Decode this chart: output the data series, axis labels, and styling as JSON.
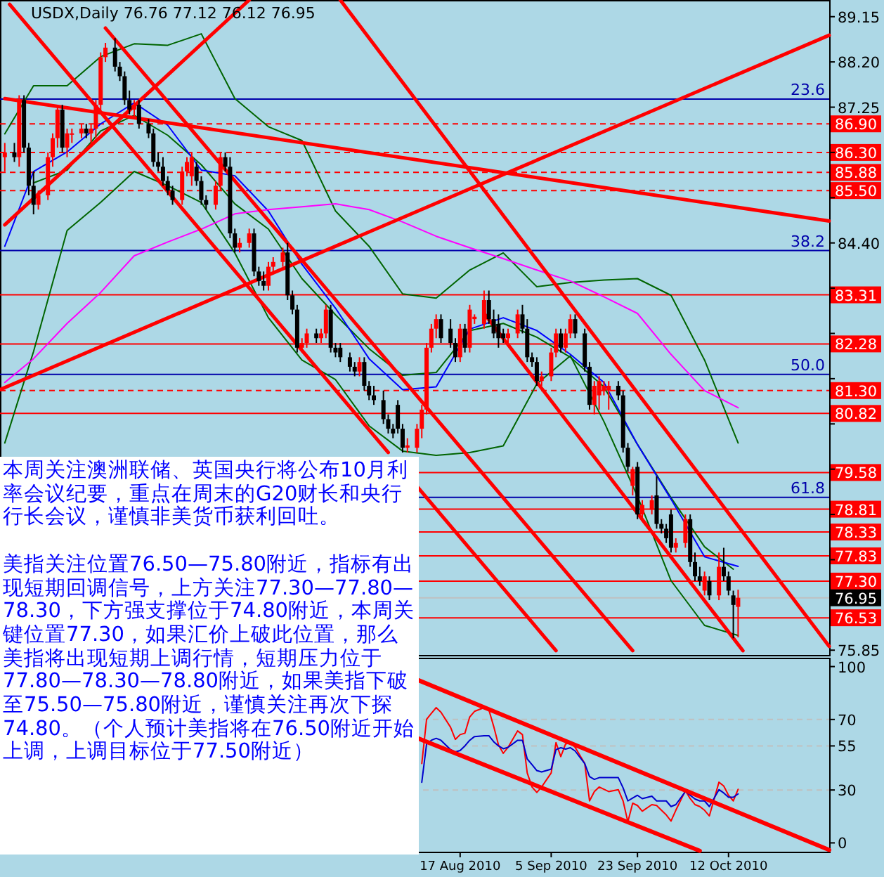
{
  "chart_data": [
    {
      "type": "candlestick",
      "title": "USDX,Daily  76.76 77.12 76.12 76.95",
      "x": [
        "2010-05-14",
        "2010-05-16",
        "2010-05-17",
        "2010-05-18",
        "2010-05-19",
        "2010-05-20",
        "2010-05-21",
        "2010-05-23",
        "2010-05-24",
        "2010-05-25",
        "2010-05-26",
        "2010-05-27",
        "2010-05-28",
        "2010-05-30",
        "2010-05-31",
        "2010-06-01",
        "2010-06-02",
        "2010-06-03",
        "2010-06-04",
        "2010-06-06",
        "2010-06-07",
        "2010-06-08",
        "2010-06-09",
        "2010-06-10",
        "2010-06-11",
        "2010-06-13",
        "2010-06-14",
        "2010-06-15",
        "2010-06-16",
        "2010-06-17",
        "2010-06-18",
        "2010-06-20",
        "2010-06-21",
        "2010-06-22",
        "2010-06-23",
        "2010-06-24",
        "2010-06-25",
        "2010-06-27",
        "2010-06-28",
        "2010-06-29",
        "2010-06-30",
        "2010-07-01",
        "2010-07-02",
        "2010-07-04",
        "2010-07-05",
        "2010-07-06",
        "2010-07-07",
        "2010-07-08",
        "2010-07-09",
        "2010-07-11",
        "2010-07-12",
        "2010-07-13",
        "2010-07-14",
        "2010-07-15",
        "2010-07-16",
        "2010-07-18",
        "2010-07-19",
        "2010-07-20",
        "2010-07-21",
        "2010-07-22",
        "2010-07-23",
        "2010-07-25",
        "2010-07-26",
        "2010-07-27",
        "2010-07-28",
        "2010-07-29",
        "2010-07-30",
        "2010-08-01",
        "2010-08-02",
        "2010-08-03",
        "2010-08-04",
        "2010-08-05",
        "2010-08-06",
        "2010-08-08",
        "2010-08-09",
        "2010-08-10",
        "2010-08-11",
        "2010-08-12",
        "2010-08-13",
        "2010-08-15",
        "2010-08-16",
        "2010-08-17",
        "2010-08-18",
        "2010-08-19",
        "2010-08-20",
        "2010-08-22",
        "2010-08-23",
        "2010-08-24",
        "2010-08-25",
        "2010-08-26",
        "2010-08-27",
        "2010-08-29",
        "2010-08-30",
        "2010-08-31",
        "2010-09-01",
        "2010-09-02",
        "2010-09-03",
        "2010-09-05",
        "2010-09-06",
        "2010-09-07",
        "2010-09-08",
        "2010-09-09",
        "2010-09-10",
        "2010-09-12",
        "2010-09-13",
        "2010-09-14",
        "2010-09-15",
        "2010-09-16",
        "2010-09-17",
        "2010-09-19",
        "2010-09-20",
        "2010-09-21",
        "2010-09-22",
        "2010-09-23",
        "2010-09-24",
        "2010-09-26",
        "2010-09-27",
        "2010-09-28",
        "2010-09-29",
        "2010-09-30",
        "2010-10-01",
        "2010-10-03",
        "2010-10-04",
        "2010-10-05",
        "2010-10-06",
        "2010-10-07",
        "2010-10-08",
        "2010-10-10",
        "2010-10-11",
        "2010-10-12",
        "2010-10-13",
        "2010-10-14"
      ],
      "ohlc": [
        [
          86.2,
          86.5,
          85.9,
          86.3
        ],
        [
          86.3,
          86.5,
          86.1,
          86.2
        ],
        [
          86.2,
          87.5,
          86.0,
          87.4
        ],
        [
          87.4,
          87.5,
          86.3,
          86.4
        ],
        [
          86.4,
          86.5,
          85.4,
          85.6
        ],
        [
          85.6,
          85.9,
          85.0,
          85.2
        ],
        [
          85.2,
          85.5,
          85.1,
          85.4
        ],
        [
          85.4,
          86.3,
          85.3,
          86.2
        ],
        [
          86.2,
          86.7,
          86.0,
          86.6
        ],
        [
          86.6,
          87.3,
          86.4,
          87.2
        ],
        [
          87.2,
          87.3,
          86.3,
          86.4
        ],
        [
          86.4,
          86.8,
          86.2,
          86.7
        ],
        [
          86.7,
          86.8,
          86.5,
          86.7
        ],
        [
          86.7,
          86.9,
          86.6,
          86.8
        ],
        [
          86.8,
          86.9,
          86.6,
          86.7
        ],
        [
          86.7,
          86.9,
          86.5,
          86.8
        ],
        [
          86.8,
          87.4,
          86.6,
          87.3
        ],
        [
          87.3,
          88.4,
          87.1,
          88.3
        ],
        [
          88.3,
          88.6,
          88.2,
          88.5
        ],
        [
          88.5,
          88.7,
          88.0,
          88.1
        ],
        [
          88.1,
          88.2,
          87.8,
          87.9
        ],
        [
          87.9,
          88.0,
          87.3,
          87.4
        ],
        [
          87.4,
          87.6,
          87.1,
          87.2
        ],
        [
          87.2,
          87.4,
          87.0,
          87.3
        ],
        [
          87.3,
          87.4,
          86.8,
          86.9
        ],
        [
          86.9,
          87.0,
          86.6,
          86.7
        ],
        [
          86.7,
          86.8,
          86.0,
          86.1
        ],
        [
          86.1,
          86.3,
          85.9,
          86.0
        ],
        [
          86.0,
          86.2,
          85.6,
          85.7
        ],
        [
          85.7,
          85.8,
          85.4,
          85.5
        ],
        [
          85.5,
          85.6,
          85.2,
          85.3
        ],
        [
          85.3,
          86.0,
          85.2,
          85.9
        ],
        [
          85.9,
          86.2,
          85.8,
          86.1
        ],
        [
          85.8,
          86.3,
          85.6,
          86.2
        ],
        [
          86.0,
          86.1,
          85.6,
          85.7
        ],
        [
          85.7,
          85.8,
          85.2,
          85.3
        ],
        [
          85.3,
          85.4,
          85.1,
          85.2
        ],
        [
          85.2,
          85.7,
          85.1,
          85.6
        ],
        [
          85.6,
          86.3,
          85.5,
          86.2
        ],
        [
          86.2,
          86.3,
          85.9,
          86.0
        ],
        [
          86.0,
          86.2,
          84.5,
          84.6
        ],
        [
          84.6,
          84.7,
          84.2,
          84.3
        ],
        [
          84.3,
          84.5,
          84.2,
          84.4
        ],
        [
          84.4,
          84.7,
          84.3,
          84.6
        ],
        [
          84.6,
          84.7,
          83.7,
          83.8
        ],
        [
          83.8,
          83.9,
          83.5,
          83.6
        ],
        [
          83.6,
          83.8,
          83.4,
          83.5
        ],
        [
          83.5,
          84.0,
          83.4,
          83.9
        ],
        [
          83.9,
          84.1,
          83.8,
          84.0
        ],
        [
          84.0,
          84.3,
          83.9,
          84.2
        ],
        [
          84.2,
          84.4,
          83.2,
          83.3
        ],
        [
          83.3,
          83.4,
          82.9,
          83.0
        ],
        [
          83.0,
          83.1,
          82.1,
          82.2
        ],
        [
          82.2,
          82.4,
          82.1,
          82.3
        ],
        [
          82.3,
          82.6,
          82.2,
          82.5
        ],
        [
          82.5,
          82.6,
          82.3,
          82.4
        ],
        [
          82.4,
          82.6,
          82.3,
          82.5
        ],
        [
          82.5,
          83.1,
          82.4,
          83.0
        ],
        [
          83.0,
          83.1,
          82.1,
          82.2
        ],
        [
          82.2,
          82.3,
          82.0,
          82.1
        ],
        [
          82.2,
          82.3,
          81.9,
          82.0
        ],
        [
          82.0,
          82.1,
          81.7,
          81.8
        ],
        [
          81.8,
          81.9,
          81.6,
          81.7
        ],
        [
          81.7,
          82.0,
          81.6,
          81.9
        ],
        [
          81.9,
          82.0,
          81.3,
          81.4
        ],
        [
          81.4,
          81.5,
          81.1,
          81.2
        ],
        [
          81.2,
          81.4,
          81.0,
          81.1
        ],
        [
          81.1,
          81.3,
          80.6,
          80.7
        ],
        [
          80.7,
          80.8,
          80.4,
          80.5
        ],
        [
          80.5,
          80.6,
          80.3,
          80.4
        ],
        [
          81.0,
          81.1,
          80.4,
          80.5
        ],
        [
          80.5,
          80.6,
          80.0,
          80.1
        ],
        [
          80.1,
          80.3,
          80.0,
          80.15
        ],
        [
          80.1,
          80.6,
          80.0,
          80.5
        ],
        [
          80.5,
          81.0,
          80.3,
          80.9
        ],
        [
          80.9,
          82.3,
          80.8,
          82.2
        ],
        [
          82.2,
          82.7,
          82.1,
          82.6
        ],
        [
          82.6,
          82.9,
          82.4,
          82.8
        ],
        [
          82.8,
          82.9,
          82.3,
          82.4
        ],
        [
          82.6,
          82.8,
          82.2,
          82.3
        ],
        [
          82.3,
          82.4,
          81.9,
          82.0
        ],
        [
          82.0,
          82.7,
          81.9,
          82.6
        ],
        [
          82.6,
          82.7,
          82.1,
          82.2
        ],
        [
          82.2,
          83.1,
          82.1,
          83.0
        ],
        [
          82.8,
          82.9,
          82.7,
          82.85
        ],
        [
          82.7,
          83.4,
          82.6,
          83.2
        ],
        [
          83.2,
          83.4,
          82.7,
          82.8
        ],
        [
          82.8,
          83.0,
          82.4,
          82.5
        ],
        [
          82.7,
          82.9,
          82.2,
          82.4
        ],
        [
          82.5,
          82.6,
          82.3,
          82.4
        ],
        [
          82.4,
          82.6,
          82.3,
          82.5
        ],
        [
          82.5,
          83.0,
          82.4,
          82.9
        ],
        [
          82.9,
          83.1,
          82.5,
          82.6
        ],
        [
          82.6,
          82.8,
          81.9,
          82.0
        ],
        [
          82.0,
          82.1,
          81.8,
          81.9
        ],
        [
          81.9,
          82.0,
          81.4,
          81.5
        ],
        [
          81.5,
          81.7,
          81.4,
          81.6
        ],
        [
          81.6,
          82.2,
          81.5,
          82.1
        ],
        [
          82.1,
          82.6,
          82.0,
          82.5
        ],
        [
          82.5,
          82.6,
          82.1,
          82.2
        ],
        [
          82.2,
          82.6,
          82.1,
          82.5
        ],
        [
          82.5,
          82.9,
          82.4,
          82.8
        ],
        [
          82.8,
          82.9,
          82.4,
          82.5
        ],
        [
          82.5,
          82.6,
          81.7,
          81.8
        ],
        [
          81.8,
          81.9,
          80.9,
          81.0
        ],
        [
          81.0,
          81.5,
          80.8,
          81.4
        ],
        [
          81.2,
          81.6,
          80.9,
          81.5
        ],
        [
          81.3,
          81.5,
          81.2,
          81.4
        ],
        [
          81.3,
          81.5,
          80.9,
          81.4
        ],
        [
          81.4,
          81.5,
          81.1,
          81.2
        ],
        [
          81.2,
          81.3,
          80.0,
          80.1
        ],
        [
          80.1,
          80.2,
          79.6,
          79.7
        ],
        [
          79.3,
          79.7,
          79.1,
          79.65
        ],
        [
          79.7,
          79.8,
          78.6,
          78.7
        ],
        [
          78.7,
          79.0,
          78.6,
          78.9
        ],
        [
          78.8,
          79.1,
          78.7,
          79.0
        ],
        [
          79.1,
          79.5,
          78.4,
          78.5
        ],
        [
          78.5,
          78.6,
          78.3,
          78.4
        ],
        [
          78.4,
          78.5,
          78.1,
          78.2
        ],
        [
          78.7,
          78.8,
          77.9,
          78.0
        ],
        [
          78.0,
          78.2,
          77.9,
          78.1
        ],
        [
          78.1,
          78.7,
          78.0,
          78.6
        ],
        [
          78.6,
          78.7,
          77.6,
          77.7
        ],
        [
          77.7,
          77.9,
          77.3,
          77.4
        ],
        [
          77.4,
          77.6,
          77.2,
          77.3
        ],
        [
          77.1,
          77.5,
          77.0,
          77.4
        ],
        [
          77.3,
          77.4,
          76.9,
          77.0
        ],
        [
          77.0,
          77.9,
          76.9,
          77.6
        ],
        [
          77.6,
          78.0,
          77.3,
          77.4
        ],
        [
          77.4,
          77.5,
          77.0,
          77.1
        ],
        [
          77.0,
          77.1,
          76.1,
          76.8
        ],
        [
          76.76,
          77.12,
          76.12,
          76.95
        ]
      ],
      "colors": [
        "#ff0000",
        "#000000",
        "#ff0000",
        "#000000",
        "#000000",
        "#000000",
        "#ff0000",
        "#ff0000",
        "#ff0000",
        "#ff0000",
        "#000000",
        "#ff0000",
        "#ff0000",
        "#ff0000",
        "#000000",
        "#ff0000",
        "#ff0000",
        "#ff0000",
        "#ff0000",
        "#000000",
        "#000000",
        "#000000",
        "#000000",
        "#ff0000",
        "#000000",
        "#000000",
        "#000000",
        "#000000",
        "#000000",
        "#000000",
        "#000000",
        "#ff0000",
        "#ff0000",
        "#ff0000",
        "#000000",
        "#000000",
        "#000000",
        "#ff0000",
        "#ff0000",
        "#000000",
        "#000000",
        "#000000",
        "#ff0000",
        "#ff0000",
        "#000000",
        "#000000",
        "#000000",
        "#ff0000",
        "#ff0000",
        "#ff0000",
        "#000000",
        "#000000",
        "#000000",
        "#ff0000",
        "#ff0000",
        "#000000",
        "#ff0000",
        "#ff0000",
        "#000000",
        "#000000",
        "#000000",
        "#000000",
        "#000000",
        "#ff0000",
        "#000000",
        "#000000",
        "#000000",
        "#000000",
        "#000000",
        "#000000",
        "#000000",
        "#000000",
        "#ff0000",
        "#ff0000",
        "#ff0000",
        "#ff0000",
        "#ff0000",
        "#ff0000",
        "#000000",
        "#000000",
        "#000000",
        "#ff0000",
        "#000000",
        "#ff0000",
        "#ff0000",
        "#ff0000",
        "#000000",
        "#000000",
        "#000000",
        "#000000",
        "#ff0000",
        "#ff0000",
        "#000000",
        "#000000",
        "#000000",
        "#000000",
        "#ff0000",
        "#ff0000",
        "#ff0000",
        "#000000",
        "#ff0000",
        "#ff0000",
        "#000000",
        "#000000",
        "#000000",
        "#ff0000",
        "#ff0000",
        "#ff0000",
        "#ff0000",
        "#000000",
        "#000000",
        "#000000",
        "#ff0000",
        "#000000",
        "#ff0000",
        "#ff0000",
        "#000000",
        "#000000",
        "#000000",
        "#000000",
        "#ff0000",
        "#ff0000",
        "#000000",
        "#000000",
        "#000000",
        "#ff0000",
        "#000000",
        "#ff0000",
        "#000000",
        "#000000",
        "#000000",
        "#ff0000"
      ],
      "xlim": [
        "2010-05-13",
        "2010-11-02"
      ],
      "ylim": [
        75.75,
        89.5
      ],
      "yticks": [
        89.15,
        {
          "value": 88.2,
          "label": "88.20"
        },
        87.25,
        {
          "value": 86.3,
          "label": null
        },
        {
          "value": 85.35,
          "label": null
        },
        {
          "value": 84.4,
          "label": "84.40"
        },
        {
          "value": 83.45,
          "label": null
        },
        {
          "value": 82.5,
          "label": null
        },
        {
          "value": 81.55,
          "label": null
        },
        {
          "value": 80.6,
          "label": null
        },
        {
          "value": 79.65,
          "label": null
        },
        {
          "value": 78.7,
          "label": null
        },
        {
          "value": 77.75,
          "label": null
        },
        {
          "value": 76.8,
          "label": null
        },
        75.85
      ],
      "tick_labels": "y",
      "series": [
        {
          "type": "line",
          "color": "#006400",
          "x": [
            "2010-05-14",
            "2010-05-20",
            "2010-05-27",
            "2010-06-03",
            "2010-06-10",
            "2010-06-17",
            "2010-06-24",
            "2010-07-01",
            "2010-07-08",
            "2010-07-15",
            "2010-07-22",
            "2010-07-29",
            "2010-08-05",
            "2010-08-12",
            "2010-08-19",
            "2010-08-26",
            "2010-09-02",
            "2010-09-09",
            "2010-09-16",
            "2010-09-23",
            "2010-09-30",
            "2010-10-07",
            "2010-10-14"
          ],
          "values": [
            86.69,
            87.7,
            87.7,
            88.31,
            88.58,
            88.55,
            88.79,
            87.43,
            86.84,
            86.55,
            85.07,
            84.33,
            83.33,
            83.24,
            83.83,
            84.19,
            83.48,
            83.57,
            83.62,
            83.65,
            83.3,
            81.94,
            80.2
          ]
        },
        {
          "type": "line",
          "color": "#006400",
          "x": [
            "2010-05-14",
            "2010-05-20",
            "2010-05-27",
            "2010-06-03",
            "2010-06-10",
            "2010-06-17",
            "2010-06-24",
            "2010-07-01",
            "2010-07-08",
            "2010-07-15",
            "2010-07-22",
            "2010-07-29",
            "2010-08-05",
            "2010-08-12",
            "2010-08-19",
            "2010-08-26",
            "2010-09-02",
            "2010-09-09",
            "2010-09-16",
            "2010-09-23",
            "2010-09-30",
            "2010-10-07",
            "2010-10-14"
          ],
          "values": [
            80.2,
            82.12,
            84.66,
            85.25,
            85.9,
            85.6,
            85.25,
            84.19,
            82.83,
            81.94,
            81.53,
            80.56,
            80.03,
            79.94,
            80.0,
            80.14,
            81.44,
            82.03,
            80.65,
            79.08,
            77.31,
            76.37,
            76.16
          ]
        },
        {
          "type": "line",
          "color": "#006400",
          "x": [
            "2010-05-20",
            "2010-05-27",
            "2010-06-03",
            "2010-06-10",
            "2010-06-17",
            "2010-06-24",
            "2010-07-01",
            "2010-07-08",
            "2010-07-15",
            "2010-07-22",
            "2010-07-29",
            "2010-08-05",
            "2010-08-12",
            "2010-08-19",
            "2010-08-26",
            "2010-09-02",
            "2010-09-09",
            "2010-09-16",
            "2010-09-23",
            "2010-09-30",
            "2010-10-07",
            "2010-10-13"
          ],
          "values": [
            85.66,
            85.93,
            86.75,
            87.08,
            86.66,
            86.04,
            85.22,
            84.69,
            83.65,
            82.89,
            82.18,
            81.62,
            81.68,
            82.56,
            82.71,
            82.42,
            82.0,
            81.38,
            80.17,
            79.05,
            78.02,
            77.55
          ]
        },
        {
          "type": "line",
          "color": "#0000ff",
          "x": [
            "2010-05-14",
            "2010-05-20",
            "2010-05-27",
            "2010-06-03",
            "2010-06-10",
            "2010-06-17",
            "2010-06-24",
            "2010-07-01",
            "2010-07-08",
            "2010-07-15",
            "2010-07-22",
            "2010-07-29",
            "2010-08-05",
            "2010-08-12",
            "2010-08-19",
            "2010-08-26",
            "2010-09-02",
            "2010-09-09",
            "2010-09-16",
            "2010-09-23",
            "2010-09-30",
            "2010-10-07",
            "2010-10-14"
          ],
          "values": [
            84.33,
            85.9,
            86.31,
            86.9,
            87.34,
            86.87,
            85.93,
            85.81,
            85.07,
            83.95,
            83.03,
            81.97,
            81.32,
            81.38,
            82.59,
            82.83,
            82.56,
            82.06,
            81.47,
            80.17,
            79.02,
            77.81,
            77.61
          ]
        },
        {
          "type": "line",
          "color": "#ff00ff",
          "x": [
            "2010-05-14",
            "2010-05-20",
            "2010-05-27",
            "2010-06-03",
            "2010-06-10",
            "2010-06-17",
            "2010-06-24",
            "2010-07-01",
            "2010-07-08",
            "2010-07-15",
            "2010-07-22",
            "2010-07-29",
            "2010-08-05",
            "2010-08-12",
            "2010-08-19",
            "2010-08-26",
            "2010-09-02",
            "2010-09-09",
            "2010-09-16",
            "2010-09-23",
            "2010-09-30",
            "2010-10-07",
            "2010-10-14"
          ],
          "values": [
            81.47,
            81.97,
            82.71,
            83.36,
            84.13,
            84.42,
            84.69,
            85.01,
            85.1,
            85.16,
            85.22,
            85.1,
            84.84,
            84.54,
            84.3,
            84.07,
            83.83,
            83.6,
            83.27,
            82.92,
            82.06,
            81.3,
            80.94
          ]
        },
        {
          "type": "line",
          "color": "#ff0000",
          "x": [
            "2010-05-15",
            "2010-08-02"
          ],
          "values": [
            89.41,
            80.0
          ]
        },
        {
          "type": "line",
          "color": "#ff0000",
          "x": [
            "2010-08-08",
            "2010-09-06"
          ],
          "values": [
            79.29,
            75.84
          ]
        },
        {
          "type": "line",
          "color": "#ff0000",
          "x": [
            "2010-06-04",
            "2010-09-22"
          ],
          "values": [
            88.91,
            75.84
          ]
        },
        {
          "type": "line",
          "color": "#ff0000",
          "x": [
            "2010-08-22",
            "2010-10-15"
          ],
          "values": [
            82.92,
            75.84
          ]
        },
        {
          "type": "line",
          "color": "#ff0000",
          "x": [
            "2010-07-23",
            "2010-11-02"
          ],
          "values": [
            89.5,
            75.93
          ]
        },
        {
          "type": "line",
          "color": "#ff0000",
          "x": [
            "2010-05-14",
            "2010-07-04"
          ],
          "values": [
            84.78,
            89.5
          ]
        },
        {
          "type": "line",
          "color": "#ff0000",
          "x": [
            "2010-05-13",
            "2010-11-02"
          ],
          "values": [
            81.32,
            88.76
          ]
        },
        {
          "type": "line",
          "color": "#ff0000",
          "x": [
            "2010-05-14",
            "2010-11-02"
          ],
          "values": [
            87.43,
            84.86
          ]
        }
      ],
      "ref_lines": [
        {
          "axis": "y",
          "value": 87.42,
          "color": "#0000aa"
        },
        {
          "axis": "y",
          "value": 84.24,
          "color": "#0000aa"
        },
        {
          "axis": "y",
          "value": 81.64,
          "color": "#0000aa"
        },
        {
          "axis": "y",
          "value": 79.06,
          "color": "#0000aa"
        },
        {
          "axis": "y",
          "value": 86.9,
          "label": "86.90",
          "color": "#ff0000",
          "line_style": "dashed"
        },
        {
          "axis": "y",
          "value": 86.3,
          "label": "86.30",
          "color": "#ff0000",
          "line_style": "dashed"
        },
        {
          "axis": "y",
          "value": 85.88,
          "label": "85.88",
          "color": "#ff0000",
          "line_style": "dashed"
        },
        {
          "axis": "y",
          "value": 85.5,
          "label": "85.50",
          "color": "#ff0000",
          "line_style": "dashed"
        },
        {
          "axis": "y",
          "value": 83.31,
          "label": "83.31",
          "color": "#ff0000"
        },
        {
          "axis": "y",
          "value": 82.28,
          "label": "82.28",
          "color": "#ff0000"
        },
        {
          "axis": "y",
          "value": 81.3,
          "label": "81.30",
          "color": "#ff0000",
          "line_style": "dashed"
        },
        {
          "axis": "y",
          "value": 80.82,
          "label": "80.82",
          "color": "#ff0000"
        },
        {
          "axis": "y",
          "value": 79.58,
          "label": "79.58",
          "color": "#ff0000"
        },
        {
          "axis": "y",
          "value": 78.81,
          "label": "78.81",
          "color": "#ff0000"
        },
        {
          "axis": "y",
          "value": 78.33,
          "label": "78.33",
          "color": "#ff0000"
        },
        {
          "axis": "y",
          "value": 77.83,
          "label": "77.83",
          "color": "#ff0000"
        },
        {
          "axis": "y",
          "value": 77.3,
          "label": "77.30",
          "color": "#ff0000"
        },
        {
          "axis": "y",
          "value": 76.95,
          "label": "76.95",
          "color": "#c0c0c0"
        },
        {
          "axis": "y",
          "value": 76.53,
          "label": "76.53",
          "color": "#ff0000"
        }
      ],
      "annotations": [
        {
          "text": "23.6",
          "x": "2010-11-02",
          "y": 87.42
        },
        {
          "text": "38.2",
          "x": "2010-11-02",
          "y": 84.24
        },
        {
          "text": "50.0",
          "x": "2010-11-02",
          "y": 81.64
        },
        {
          "text": "61.8",
          "x": "2010-11-02",
          "y": 79.06
        },
        "本周关注澳洲联储、英国央行将公布10月利率会议纪要，重点在周末的G20财长和央行行长会议，谨慎非美货币获利回吐。",
        "美指关注位置76.50—75.80附近，指标有出现短期回调信号，上方关注77.30—77.80—78.30，下方强支撑位于74.80附近，本周关键位置77.30，如果汇价上破此位置，那么美指将出现短期上调行情，短期压力位于77.80—78.30—78.80附近，如果美指下破至75.50—75.80附近，谨慎关注再次下探74.80。（个人预计美指将在76.50附近开始上调，上调目标位于77.50附近）"
      ]
    },
    {
      "type": "line",
      "xlim": [
        "2010-05-13",
        "2010-11-02"
      ],
      "ylim": [
        -5,
        105
      ],
      "xticks": [
        {
          "value": "2010-08-17",
          "label": "17 Aug 2010"
        },
        {
          "value": "2010-09-05",
          "label": "5 Sep 2010"
        },
        {
          "value": "2010-09-23",
          "label": "23 Sep 2010"
        },
        {
          "value": "2010-10-12",
          "label": "12 Oct 2010"
        }
      ],
      "yticks": [
        0,
        30,
        55,
        70,
        100
      ],
      "ref_lines": [
        {
          "axis": "y",
          "value": 30,
          "color": "#c0c0c0",
          "line_style": "dashed"
        },
        {
          "axis": "y",
          "value": 55,
          "color": "#c0c0c0",
          "line_style": "dashed"
        },
        {
          "axis": "y",
          "value": 70,
          "color": "#c0c0c0",
          "line_style": "dashed"
        }
      ],
      "series": [
        {
          "color": "#ff0000",
          "x": [
            "2010-08-09",
            "2010-08-10",
            "2010-08-11",
            "2010-08-12",
            "2010-08-13",
            "2010-08-15",
            "2010-08-16",
            "2010-08-17",
            "2010-08-18",
            "2010-08-19",
            "2010-08-20",
            "2010-08-22",
            "2010-08-23",
            "2010-08-24",
            "2010-08-25",
            "2010-08-26",
            "2010-08-27",
            "2010-08-29",
            "2010-08-30",
            "2010-08-31",
            "2010-09-01",
            "2010-09-02",
            "2010-09-03",
            "2010-09-05",
            "2010-09-06",
            "2010-09-07",
            "2010-09-08",
            "2010-09-09",
            "2010-09-10",
            "2010-09-12",
            "2010-09-13",
            "2010-09-14",
            "2010-09-15",
            "2010-09-16",
            "2010-09-17",
            "2010-09-19",
            "2010-09-20",
            "2010-09-21",
            "2010-09-22",
            "2010-09-23",
            "2010-09-24",
            "2010-09-26",
            "2010-09-27",
            "2010-09-28",
            "2010-09-29",
            "2010-09-30",
            "2010-10-01",
            "2010-10-03",
            "2010-10-04",
            "2010-10-05",
            "2010-10-06",
            "2010-10-07",
            "2010-10-08",
            "2010-10-10",
            "2010-10-11",
            "2010-10-12",
            "2010-10-13",
            "2010-10-14"
          ],
          "values": [
            45.0,
            70.1,
            73.5,
            76.7,
            74.1,
            65.6,
            58.7,
            61.4,
            62.2,
            71.4,
            74.6,
            76.7,
            75.4,
            66.1,
            55.6,
            50.8,
            54.2,
            63.5,
            61.4,
            39.7,
            31.7,
            28.6,
            31.7,
            39.7,
            56.9,
            48.9,
            56.1,
            56.9,
            54.2,
            45.0,
            23.8,
            29.1,
            31.7,
            30.4,
            29.1,
            30.2,
            23.8,
            11.9,
            22.5,
            21.2,
            18.0,
            21.7,
            21.2,
            18.5,
            15.9,
            12.4,
            18.5,
            29.6,
            25.1,
            21.7,
            20.6,
            18.5,
            15.3,
            34.4,
            32.3,
            27.0,
            23.8,
            30.4
          ]
        },
        {
          "color": "#0000cd",
          "x": [
            "2010-08-09",
            "2010-08-10",
            "2010-08-11",
            "2010-08-12",
            "2010-08-13",
            "2010-08-15",
            "2010-08-16",
            "2010-08-17",
            "2010-08-18",
            "2010-08-19",
            "2010-08-20",
            "2010-08-22",
            "2010-08-23",
            "2010-08-24",
            "2010-08-25",
            "2010-08-26",
            "2010-08-27",
            "2010-08-29",
            "2010-08-30",
            "2010-08-31",
            "2010-09-01",
            "2010-09-02",
            "2010-09-03",
            "2010-09-05",
            "2010-09-06",
            "2010-09-07",
            "2010-09-08",
            "2010-09-09",
            "2010-09-10",
            "2010-09-12",
            "2010-09-13",
            "2010-09-14",
            "2010-09-15",
            "2010-09-16",
            "2010-09-17",
            "2010-09-19",
            "2010-09-20",
            "2010-09-21",
            "2010-09-22",
            "2010-09-23",
            "2010-09-24",
            "2010-09-26",
            "2010-09-27",
            "2010-09-28",
            "2010-09-29",
            "2010-09-30",
            "2010-10-01",
            "2010-10-03",
            "2010-10-04",
            "2010-10-05",
            "2010-10-06",
            "2010-10-07",
            "2010-10-08",
            "2010-10-10",
            "2010-10-11",
            "2010-10-12",
            "2010-10-13",
            "2010-10-14"
          ],
          "values": [
            34.4,
            56.1,
            58.2,
            59.3,
            58.2,
            52.9,
            51.6,
            52.4,
            55.0,
            58.2,
            60.3,
            60.8,
            60.8,
            57.4,
            55.0,
            53.4,
            54.2,
            58.2,
            58.2,
            47.6,
            44.4,
            41.0,
            40.2,
            41.8,
            52.9,
            54.0,
            53.2,
            54.0,
            52.1,
            45.0,
            37.6,
            36.0,
            37.0,
            37.0,
            37.0,
            37.0,
            31.2,
            23.8,
            25.4,
            27.0,
            25.1,
            26.5,
            23.8,
            23.8,
            23.8,
            20.6,
            21.7,
            29.1,
            27.0,
            24.9,
            23.8,
            23.8,
            20.6,
            30.2,
            28.3,
            25.9,
            25.9,
            27.8
          ]
        },
        {
          "color": "#ff0000",
          "x": [
            "2010-08-08",
            "2010-11-02"
          ],
          "values": [
            92.6,
            -4.0
          ]
        },
        {
          "color": "#ff0000",
          "x": [
            "2010-08-08",
            "2010-10-06"
          ],
          "values": [
            59.5,
            -4.5
          ]
        }
      ]
    }
  ]
}
